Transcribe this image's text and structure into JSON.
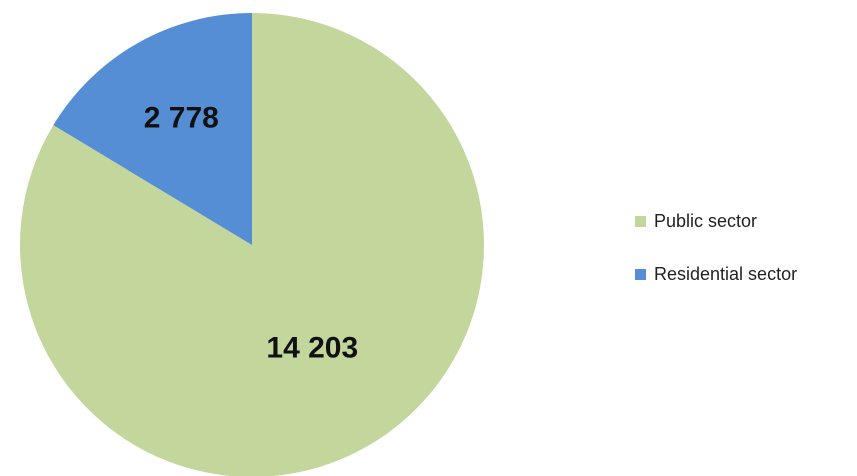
{
  "chart_data": {
    "type": "pie",
    "title": "",
    "categories": [
      "Public sector",
      "Residential sector"
    ],
    "values": [
      14203,
      2778
    ],
    "value_labels": [
      "14 203",
      "2 778"
    ],
    "colors": [
      "#c3d69b",
      "#558ed5"
    ],
    "start_angle_deg": 0,
    "direction": "counterclockwise",
    "legend": {
      "position": "right",
      "items": [
        {
          "label": "Public sector",
          "color": "#c3d69b"
        },
        {
          "label": "Residential sector",
          "color": "#558ed5"
        }
      ]
    }
  }
}
